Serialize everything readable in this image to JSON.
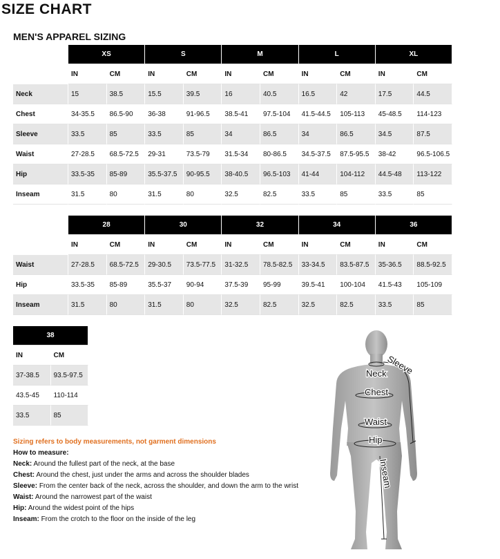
{
  "header": {
    "title": "SIZE CHART",
    "subtitle": "MEN'S APPAREL SIZING"
  },
  "tables": [
    {
      "sizes": [
        "XS",
        "S",
        "M",
        "L",
        "XL"
      ],
      "units": [
        "IN",
        "CM"
      ],
      "rows": [
        {
          "label": "Neck",
          "cells": [
            "15",
            "38.5",
            "15.5",
            "39.5",
            "16",
            "40.5",
            "16.5",
            "42",
            "17.5",
            "44.5"
          ]
        },
        {
          "label": "Chest",
          "cells": [
            "34-35.5",
            "86.5-90",
            "36-38",
            "91-96.5",
            "38.5-41",
            "97.5-104",
            "41.5-44.5",
            "105-113",
            "45-48.5",
            "114-123"
          ]
        },
        {
          "label": "Sleeve",
          "cells": [
            "33.5",
            "85",
            "33.5",
            "85",
            "34",
            "86.5",
            "34",
            "86.5",
            "34.5",
            "87.5"
          ]
        },
        {
          "label": "Waist",
          "cells": [
            "27-28.5",
            "68.5-72.5",
            "29-31",
            "73.5-79",
            "31.5-34",
            "80-86.5",
            "34.5-37.5",
            "87.5-95.5",
            "38-42",
            "96.5-106.5"
          ]
        },
        {
          "label": "Hip",
          "cells": [
            "33.5-35",
            "85-89",
            "35.5-37.5",
            "90-95.5",
            "38-40.5",
            "96.5-103",
            "41-44",
            "104-112",
            "44.5-48",
            "113-122"
          ]
        },
        {
          "label": "Inseam",
          "cells": [
            "31.5",
            "80",
            "31.5",
            "80",
            "32.5",
            "82.5",
            "33.5",
            "85",
            "33.5",
            "85"
          ]
        }
      ]
    },
    {
      "sizes": [
        "28",
        "30",
        "32",
        "34",
        "36"
      ],
      "units": [
        "IN",
        "CM"
      ],
      "rows": [
        {
          "label": "Waist",
          "cells": [
            "27-28.5",
            "68.5-72.5",
            "29-30.5",
            "73.5-77.5",
            "31-32.5",
            "78.5-82.5",
            "33-34.5",
            "83.5-87.5",
            "35-36.5",
            "88.5-92.5"
          ]
        },
        {
          "label": "Hip",
          "cells": [
            "33.5-35",
            "85-89",
            "35.5-37",
            "90-94",
            "37.5-39",
            "95-99",
            "39.5-41",
            "100-104",
            "41.5-43",
            "105-109"
          ]
        },
        {
          "label": "Inseam",
          "cells": [
            "31.5",
            "80",
            "31.5",
            "80",
            "32.5",
            "82.5",
            "32.5",
            "82.5",
            "33.5",
            "85"
          ]
        }
      ]
    },
    {
      "sizes": [
        "38"
      ],
      "units": [
        "IN",
        "CM"
      ],
      "rows": [
        {
          "cells": [
            "37-38.5",
            "93.5-97.5"
          ]
        },
        {
          "cells": [
            "43.5-45",
            "110-114"
          ]
        },
        {
          "cells": [
            "33.5",
            "85"
          ]
        }
      ]
    }
  ],
  "notes": {
    "disclaimer": "Sizing refers to body measurements, not garment dimensions",
    "heading": "How to measure:",
    "items": [
      {
        "term": "Neck:",
        "text": "Around the fullest part of the neck, at the base"
      },
      {
        "term": "Chest:",
        "text": "Around the chest, just under the arms and across the shoulder blades"
      },
      {
        "term": "Sleeve:",
        "text": "From the center back of the neck, across the shoulder, and down the arm to the wrist"
      },
      {
        "term": "Waist:",
        "text": "Around the narrowest part of the waist"
      },
      {
        "term": "Hip:",
        "text": "Around the widest point of the hips"
      },
      {
        "term": "Inseam:",
        "text": "From the crotch to the floor on the inside of the leg"
      }
    ]
  },
  "figure": {
    "labels": [
      "Sleeve",
      "Neck",
      "Chest",
      "Waist",
      "Hip",
      "Inseam"
    ]
  }
}
